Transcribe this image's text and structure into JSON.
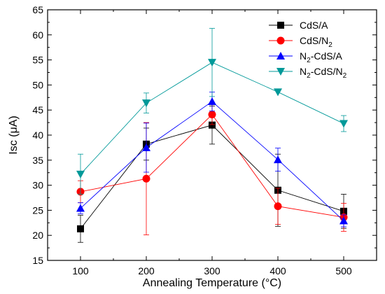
{
  "chart_data": {
    "type": "line",
    "xlabel": "Annealing Temperature (°C)",
    "ylabel": "Isc (μA)",
    "xlim": [
      50,
      550
    ],
    "ylim": [
      15,
      65
    ],
    "x_ticks": [
      100,
      200,
      300,
      400,
      500
    ],
    "y_ticks": [
      15,
      20,
      25,
      30,
      35,
      40,
      45,
      50,
      55,
      60,
      65
    ],
    "grid": false,
    "legend_position": "top-right",
    "x": [
      100,
      200,
      300,
      400,
      500
    ],
    "series": [
      {
        "name": "CdS/A",
        "legend_main": "CdS/A",
        "legend_sub": "",
        "legend_tail": "",
        "color": "#000000",
        "marker": "square",
        "values": [
          21.3,
          38.2,
          42.0,
          29.0,
          24.8
        ],
        "errors": [
          2.7,
          3.2,
          3.8,
          7.2,
          3.4
        ]
      },
      {
        "name": "CdS/N2",
        "legend_main": "CdS/N",
        "legend_sub": "2",
        "legend_tail": "",
        "color": "#ff0000",
        "marker": "circle",
        "values": [
          28.7,
          31.3,
          44.1,
          25.8,
          23.6
        ],
        "errors": [
          2.2,
          11.2,
          2.0,
          3.6,
          2.8
        ]
      },
      {
        "name": "N2-CdS/A",
        "legend_main": "N",
        "legend_sub": "2",
        "legend_tail": "-CdS/A",
        "color": "#0000ff",
        "marker": "triangle-up",
        "values": [
          25.4,
          37.5,
          46.7,
          35.1,
          22.9
        ],
        "errors": [
          1.1,
          4.9,
          1.9,
          2.3,
          1.2
        ]
      },
      {
        "name": "N2-CdS/N2",
        "legend_main": "N",
        "legend_sub": "2",
        "legend_tail": "-CdS/N",
        "legend_sub2": "2",
        "color": "#009999",
        "marker": "triangle-down",
        "values": [
          32.2,
          46.4,
          54.5,
          48.6,
          42.3
        ],
        "errors": [
          4.0,
          2.0,
          6.8,
          0.0,
          1.6
        ]
      }
    ]
  }
}
